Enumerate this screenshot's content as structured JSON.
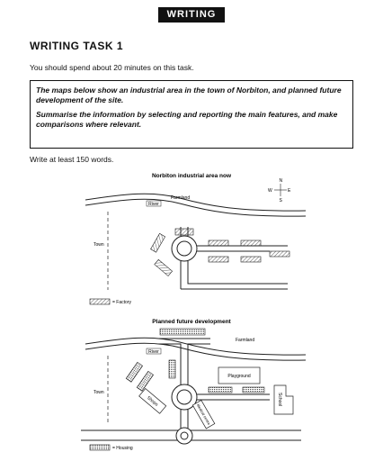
{
  "header": {
    "section": "WRITING",
    "task": "WRITING TASK 1",
    "time": "You should spend about 20 minutes on this task."
  },
  "prompt": {
    "line1": "The maps below show an industrial area in the town of Norbiton, and planned future development of the site.",
    "line2": "Summarise the information by selecting and reporting the main features, and make comparisons where relevant."
  },
  "instruction": "Write at least 150 words.",
  "map_now": {
    "title": "Norbiton industrial area now",
    "farmland": "Farmland",
    "river": "River",
    "town": "Town",
    "compass": {
      "n": "N",
      "s": "S",
      "e": "E",
      "w": "W"
    },
    "legend": "= Factory"
  },
  "map_future": {
    "title": "Planned future development",
    "farmland": "Farmland",
    "river": "River",
    "town": "Town",
    "playground": "Playground",
    "school": "School",
    "shops": "Shops",
    "medical": "Medical centre",
    "legend": "= Housing"
  }
}
